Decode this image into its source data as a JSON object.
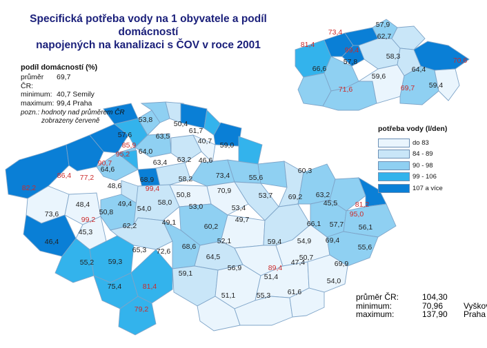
{
  "title_lines": [
    "Specifická potřeba vody na 1 obyvatele a podíl domácností",
    "napojených na kanalizaci s ČOV v roce 2001"
  ],
  "inset_stats": {
    "header": "podíl domácností (%)",
    "rows": [
      {
        "key": "průměr ČR:",
        "value": "69,7"
      },
      {
        "key": "minimum:",
        "value": "40,7 Semily"
      },
      {
        "key": "maximum:",
        "value": "99,4 Praha"
      }
    ],
    "note_lines": [
      "pozn.: hodnoty nad průměrem ČR",
      "zobrazeny červeně"
    ]
  },
  "legend": {
    "title": "potřeba vody (l/den)",
    "items": [
      {
        "label": "do 83",
        "color": "#eaf5fd"
      },
      {
        "label": "84 -   89",
        "color": "#c9e6f8"
      },
      {
        "label": "90 -   98",
        "color": "#8fd0f2"
      },
      {
        "label": "99 - 106",
        "color": "#33b3ec"
      },
      {
        "label": "107 a více",
        "color": "#0a7fd6"
      }
    ]
  },
  "cr_stats": {
    "rows": [
      {
        "key": "průměr ČR:",
        "value": "104,30",
        "extra": ""
      },
      {
        "key": "minimum:",
        "value": "70,96",
        "extra": "Vyškov"
      },
      {
        "key": "maximum:",
        "value": "137,90",
        "extra": "Praha"
      }
    ]
  },
  "colors": {
    "title": "#1a1f7a",
    "above_average_label": "#cc2a2a",
    "normal_label": "#222222",
    "border": "#7ea4c8"
  },
  "district_labels": [
    {
      "text": "53,8",
      "red": false
    },
    {
      "text": "50,4",
      "red": false
    },
    {
      "text": "57,6",
      "red": false
    },
    {
      "text": "61,7",
      "red": false
    },
    {
      "text": "63,5",
      "red": false
    },
    {
      "text": "85,9",
      "red": true
    },
    {
      "text": "40,7",
      "red": false
    },
    {
      "text": "59,0",
      "red": false
    },
    {
      "text": "95,2",
      "red": true
    },
    {
      "text": "64,0",
      "red": false
    },
    {
      "text": "90,7",
      "red": true
    },
    {
      "text": "63,2",
      "red": false
    },
    {
      "text": "46,6",
      "red": false
    },
    {
      "text": "63,4",
      "red": false
    },
    {
      "text": "64,6",
      "red": false
    },
    {
      "text": "86,4",
      "red": true
    },
    {
      "text": "77,2",
      "red": true
    },
    {
      "text": "68,9",
      "red": false
    },
    {
      "text": "58,2",
      "red": false
    },
    {
      "text": "73,4",
      "red": false
    },
    {
      "text": "55,6",
      "red": false
    },
    {
      "text": "60,3",
      "red": false
    },
    {
      "text": "82,2",
      "red": true
    },
    {
      "text": "48,6",
      "red": false
    },
    {
      "text": "99,4",
      "red": true
    },
    {
      "text": "70,9",
      "red": false
    },
    {
      "text": "53,7",
      "red": false
    },
    {
      "text": "69,2",
      "red": false
    },
    {
      "text": "63,2",
      "red": false
    },
    {
      "text": "48,4",
      "red": false
    },
    {
      "text": "49,4",
      "red": false
    },
    {
      "text": "58,0",
      "red": false
    },
    {
      "text": "50,8",
      "red": false
    },
    {
      "text": "54,0",
      "red": false
    },
    {
      "text": "53,0",
      "red": false
    },
    {
      "text": "53,4",
      "red": false
    },
    {
      "text": "45,5",
      "red": false
    },
    {
      "text": "81,2",
      "red": true
    },
    {
      "text": "73,6",
      "red": false
    },
    {
      "text": "50,8",
      "red": false
    },
    {
      "text": "99,2",
      "red": true
    },
    {
      "text": "62,2",
      "red": false
    },
    {
      "text": "49,1",
      "red": false
    },
    {
      "text": "49,7",
      "red": false
    },
    {
      "text": "95,0",
      "red": true
    },
    {
      "text": "45,3",
      "red": false
    },
    {
      "text": "60,2",
      "red": false
    },
    {
      "text": "66,1",
      "red": false
    },
    {
      "text": "57,7",
      "red": false
    },
    {
      "text": "56,1",
      "red": false
    },
    {
      "text": "46,4",
      "red": false
    },
    {
      "text": "65,3",
      "red": false
    },
    {
      "text": "72,6",
      "red": false
    },
    {
      "text": "68,6",
      "red": false
    },
    {
      "text": "52,1",
      "red": false
    },
    {
      "text": "59,4",
      "red": false
    },
    {
      "text": "54,9",
      "red": false
    },
    {
      "text": "69,4",
      "red": false
    },
    {
      "text": "55,6",
      "red": false
    },
    {
      "text": "55,2",
      "red": false
    },
    {
      "text": "59,3",
      "red": false
    },
    {
      "text": "64,5",
      "red": false
    },
    {
      "text": "50,7",
      "red": false
    },
    {
      "text": "56,9",
      "red": false
    },
    {
      "text": "89,4",
      "red": true
    },
    {
      "text": "47,4",
      "red": false
    },
    {
      "text": "69,9",
      "red": false
    },
    {
      "text": "59,1",
      "red": false
    },
    {
      "text": "75,4",
      "red": false
    },
    {
      "text": "81,4",
      "red": true
    },
    {
      "text": "51,4",
      "red": false
    },
    {
      "text": "54,0",
      "red": false
    },
    {
      "text": "61,6",
      "red": false
    },
    {
      "text": "51,1",
      "red": false
    },
    {
      "text": "55,3",
      "red": false
    },
    {
      "text": "79,2",
      "red": true
    }
  ],
  "region_labels": [
    {
      "text": "57,9",
      "red": false
    },
    {
      "text": "73,4",
      "red": true
    },
    {
      "text": "62,7",
      "red": false
    },
    {
      "text": "81,4",
      "red": true
    },
    {
      "text": "99,4",
      "red": true
    },
    {
      "text": "58,3",
      "red": false
    },
    {
      "text": "70,6",
      "red": true
    },
    {
      "text": "57,8",
      "red": false
    },
    {
      "text": "66,6",
      "red": false
    },
    {
      "text": "64,4",
      "red": false
    },
    {
      "text": "59,6",
      "red": false
    },
    {
      "text": "71,6",
      "red": true
    },
    {
      "text": "69,7",
      "red": true
    },
    {
      "text": "59,4",
      "red": false
    }
  ]
}
